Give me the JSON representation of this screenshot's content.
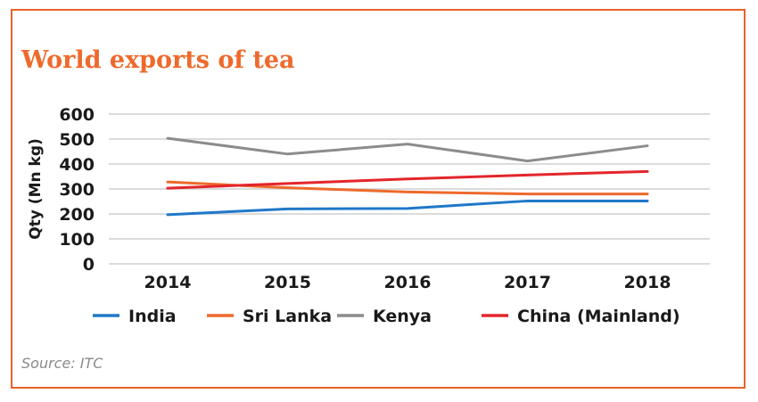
{
  "source": "Source: ITC",
  "chart_data": {
    "type": "line",
    "title": "World exports of tea",
    "xlabel": "",
    "ylabel": "Qty (Mn kg)",
    "x": [
      "2014",
      "2015",
      "2016",
      "2017",
      "2018"
    ],
    "ylim": [
      0,
      600
    ],
    "yticks": [
      0,
      100,
      200,
      300,
      400,
      500,
      600
    ],
    "grid": true,
    "legend": "bottom",
    "series": [
      {
        "name": "India",
        "color": "#1f78c8",
        "values": [
          197,
          220,
          222,
          252,
          252
        ]
      },
      {
        "name": "Sri Lanka",
        "color": "#ee6a2c",
        "values": [
          328,
          305,
          288,
          280,
          280
        ]
      },
      {
        "name": "Kenya",
        "color": "#8c8c8c",
        "values": [
          503,
          440,
          480,
          412,
          473
        ]
      },
      {
        "name": "China (Mainland)",
        "color": "#e3262b",
        "values": [
          303,
          322,
          340,
          356,
          370
        ]
      }
    ]
  }
}
